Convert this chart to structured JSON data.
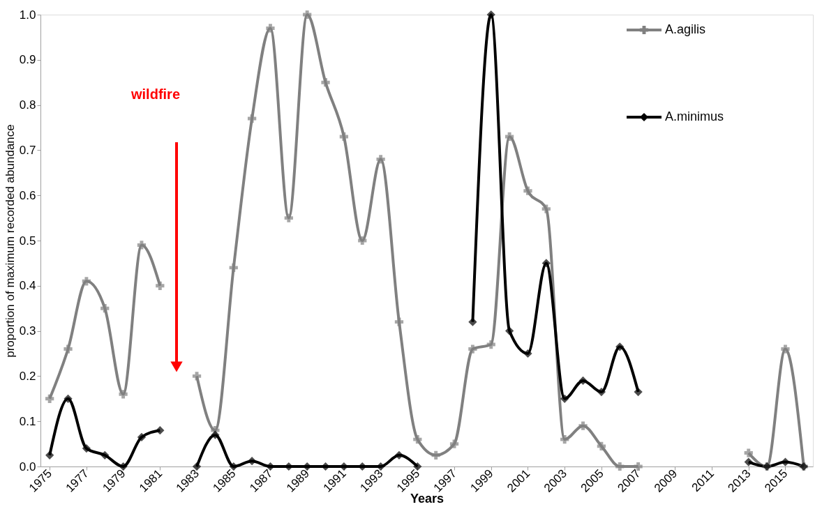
{
  "chart_data": {
    "type": "line",
    "xlabel": "Years",
    "ylabel": "proportion of maximum recorded abundance",
    "x": [
      1975,
      1976,
      1977,
      1978,
      1979,
      1980,
      1981,
      1982,
      1983,
      1984,
      1985,
      1986,
      1987,
      1988,
      1989,
      1990,
      1991,
      1992,
      1993,
      1994,
      1995,
      1996,
      1997,
      1998,
      1999,
      2000,
      2001,
      2002,
      2003,
      2004,
      2005,
      2006,
      2007,
      2008,
      2009,
      2010,
      2011,
      2012,
      2013,
      2014,
      2015,
      2016
    ],
    "xlim": [
      1974.5,
      2016.5
    ],
    "xticks": [
      1975,
      1977,
      1979,
      1981,
      1983,
      1985,
      1987,
      1989,
      1991,
      1993,
      1995,
      1997,
      1999,
      2001,
      2003,
      2005,
      2007,
      2009,
      2011,
      2013,
      2015
    ],
    "ylim": [
      0,
      1
    ],
    "yticks": [
      {
        "value": 0,
        "label": "0.0"
      },
      0.1,
      0.2,
      0.3,
      0.4,
      0.5,
      0.6,
      0.7,
      0.8,
      0.9,
      {
        "value": 1,
        "label": "1.0"
      }
    ],
    "grid": false,
    "legend": "top right",
    "line_style": "solid",
    "series": [
      {
        "name": "A.agilis",
        "color": "#808080",
        "marker": "cross",
        "values": [
          0.15,
          0.26,
          0.41,
          0.35,
          0.16,
          0.49,
          0.4,
          null,
          0.2,
          0.08,
          0.44,
          0.77,
          0.97,
          0.55,
          1.0,
          0.85,
          0.73,
          0.5,
          0.68,
          0.32,
          0.06,
          0.025,
          0.05,
          0.26,
          0.27,
          0.73,
          0.61,
          0.57,
          0.06,
          0.09,
          0.045,
          0,
          0,
          null,
          null,
          null,
          null,
          null,
          0.03,
          0,
          0.26,
          0
        ]
      },
      {
        "name": "A.minimus",
        "color": "#000000",
        "marker": "diamond",
        "values": [
          0.025,
          0.15,
          0.04,
          0.025,
          0,
          0.065,
          0.08,
          null,
          0,
          0.07,
          0,
          0.012,
          0,
          0,
          0,
          0,
          0,
          0,
          0,
          0.025,
          0,
          null,
          null,
          0.32,
          1.0,
          0.3,
          0.25,
          0.45,
          0.15,
          0.19,
          0.165,
          0.265,
          0.165,
          null,
          null,
          null,
          null,
          null,
          0.01,
          0,
          0.01,
          0
        ]
      }
    ],
    "annotations": [
      "wildfire"
    ]
  }
}
